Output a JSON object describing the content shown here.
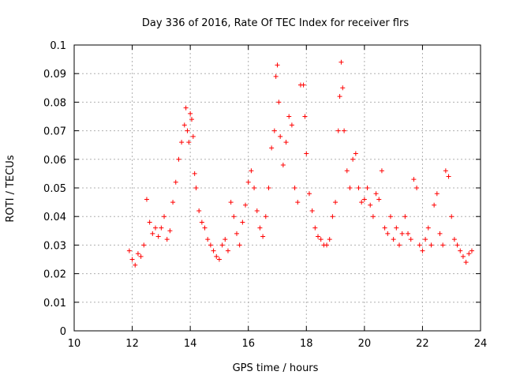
{
  "chart_data": {
    "type": "scatter",
    "title": "Day 336 of 2016, Rate Of TEC Index for receiver flrs",
    "xlabel": "GPS time / hours",
    "ylabel": "ROTI / TECUs",
    "xlim": [
      10,
      24
    ],
    "ylim": [
      0,
      0.1
    ],
    "x_ticks": [
      "10",
      "12",
      "14",
      "16",
      "18",
      "20",
      "22",
      "24"
    ],
    "y_ticks": [
      "0",
      "0.01",
      "0.02",
      "0.03",
      "0.04",
      "0.05",
      "0.06",
      "0.07",
      "0.08",
      "0.09",
      "0.1"
    ],
    "grid": true,
    "marker": "+",
    "color": "#ff0000",
    "series": [
      {
        "x": [
          11.9,
          12.0,
          12.1,
          12.2,
          12.3,
          12.4,
          12.5,
          12.6,
          12.7,
          12.8,
          12.9,
          13.0,
          13.1,
          13.2,
          13.3,
          13.4,
          13.5,
          13.6,
          13.7,
          13.8,
          13.85,
          13.9,
          13.95,
          14.0,
          14.05,
          14.1,
          14.15,
          14.2,
          14.3,
          14.4,
          14.5,
          14.6,
          14.7,
          14.8,
          14.9,
          15.0,
          15.1,
          15.2,
          15.3,
          15.4,
          15.5,
          15.6,
          15.7,
          15.8,
          15.9,
          16.0,
          16.1,
          16.2,
          16.3,
          16.4,
          16.5,
          16.6,
          16.7,
          16.8,
          16.9,
          16.95,
          17.0,
          17.05,
          17.1,
          17.2,
          17.3,
          17.4,
          17.5,
          17.6,
          17.7,
          17.8,
          17.9,
          17.95,
          18.0,
          18.1,
          18.2,
          18.3,
          18.4,
          18.5,
          18.6,
          18.7,
          18.8,
          18.9,
          19.0,
          19.1,
          19.15,
          19.2,
          19.25,
          19.3,
          19.4,
          19.5,
          19.6,
          19.7,
          19.8,
          19.9,
          20.0,
          20.1,
          20.2,
          20.3,
          20.4,
          20.5,
          20.6,
          20.7,
          20.8,
          20.9,
          21.0,
          21.1,
          21.2,
          21.3,
          21.4,
          21.5,
          21.6,
          21.7,
          21.8,
          21.9,
          22.0,
          22.1,
          22.2,
          22.3,
          22.4,
          22.5,
          22.6,
          22.7,
          22.8,
          22.9,
          23.0,
          23.1,
          23.2,
          23.3,
          23.4,
          23.5,
          23.6,
          23.7
        ],
        "y": [
          0.028,
          0.025,
          0.023,
          0.027,
          0.026,
          0.03,
          0.046,
          0.038,
          0.034,
          0.036,
          0.033,
          0.036,
          0.04,
          0.032,
          0.035,
          0.045,
          0.052,
          0.06,
          0.066,
          0.072,
          0.078,
          0.07,
          0.066,
          0.076,
          0.074,
          0.068,
          0.055,
          0.05,
          0.042,
          0.038,
          0.036,
          0.032,
          0.03,
          0.028,
          0.026,
          0.025,
          0.03,
          0.032,
          0.028,
          0.045,
          0.04,
          0.034,
          0.03,
          0.038,
          0.044,
          0.052,
          0.056,
          0.05,
          0.042,
          0.036,
          0.033,
          0.04,
          0.05,
          0.064,
          0.07,
          0.089,
          0.093,
          0.08,
          0.068,
          0.058,
          0.066,
          0.075,
          0.072,
          0.05,
          0.045,
          0.086,
          0.086,
          0.075,
          0.062,
          0.048,
          0.042,
          0.036,
          0.033,
          0.032,
          0.03,
          0.03,
          0.032,
          0.04,
          0.045,
          0.07,
          0.082,
          0.094,
          0.085,
          0.07,
          0.056,
          0.05,
          0.06,
          0.062,
          0.05,
          0.045,
          0.046,
          0.05,
          0.044,
          0.04,
          0.048,
          0.046,
          0.056,
          0.036,
          0.034,
          0.04,
          0.032,
          0.036,
          0.03,
          0.034,
          0.04,
          0.034,
          0.032,
          0.053,
          0.05,
          0.03,
          0.028,
          0.032,
          0.036,
          0.03,
          0.044,
          0.048,
          0.034,
          0.03,
          0.056,
          0.054,
          0.04,
          0.032,
          0.03,
          0.028,
          0.026,
          0.024,
          0.027,
          0.028
        ]
      }
    ]
  }
}
